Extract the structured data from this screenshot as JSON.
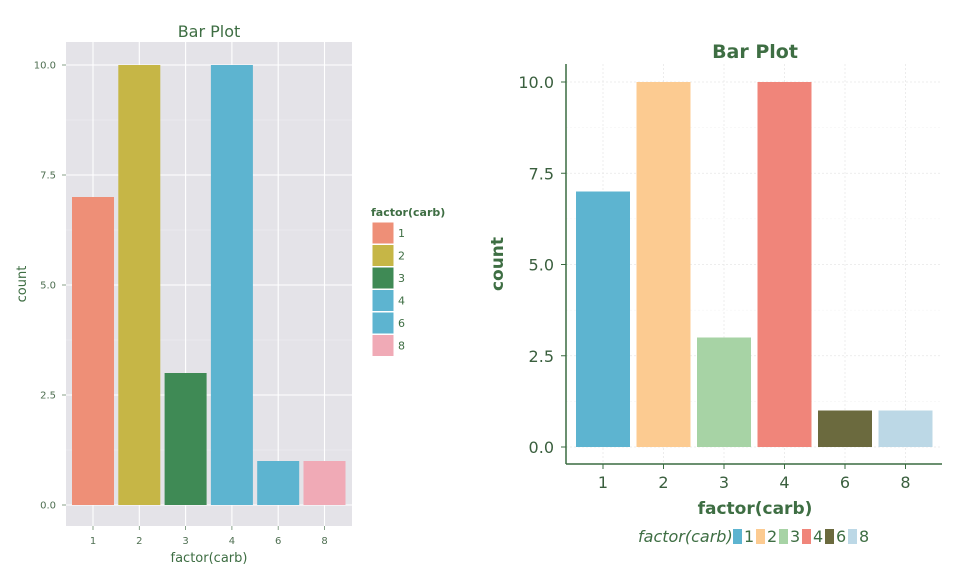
{
  "chart_data": [
    {
      "type": "bar",
      "title": "Bar Plot",
      "xlabel": "factor(carb)",
      "ylabel": "count",
      "categories": [
        "1",
        "2",
        "3",
        "4",
        "6",
        "8"
      ],
      "values": [
        7,
        10,
        3,
        10,
        1,
        1
      ],
      "ylim": [
        0,
        10.5
      ],
      "yticks": [
        "0.0",
        "2.5",
        "5.0",
        "7.5",
        "10.0"
      ],
      "grid": true,
      "legend": {
        "title": "factor(carb)",
        "position": "right",
        "labels": [
          "1",
          "2",
          "3",
          "4",
          "6",
          "8"
        ]
      },
      "colors": [
        "#ee8f77",
        "#c6b646",
        "#3f8a55",
        "#5db4d0",
        "#5db4d0",
        "#f0aab6"
      ],
      "background": "#e4e3e8"
    },
    {
      "type": "bar",
      "title": "Bar Plot",
      "xlabel": "factor(carb)",
      "ylabel": "count",
      "categories": [
        "1",
        "2",
        "3",
        "4",
        "6",
        "8"
      ],
      "values": [
        7,
        10,
        3,
        10,
        1,
        1
      ],
      "ylim": [
        -0.4,
        10.9
      ],
      "yticks": [
        "0.0",
        "2.5",
        "5.0",
        "7.5",
        "10.0"
      ],
      "grid": true,
      "legend": {
        "title": "factor(carb)",
        "position": "bottom",
        "labels": [
          "1",
          "2",
          "3",
          "4",
          "6",
          "8"
        ]
      },
      "colors": [
        "#5db4d0",
        "#fccb91",
        "#a7d3a5",
        "#f0857a",
        "#6b6a3e",
        "#bcd8e6"
      ],
      "background": "#ffffff"
    }
  ]
}
